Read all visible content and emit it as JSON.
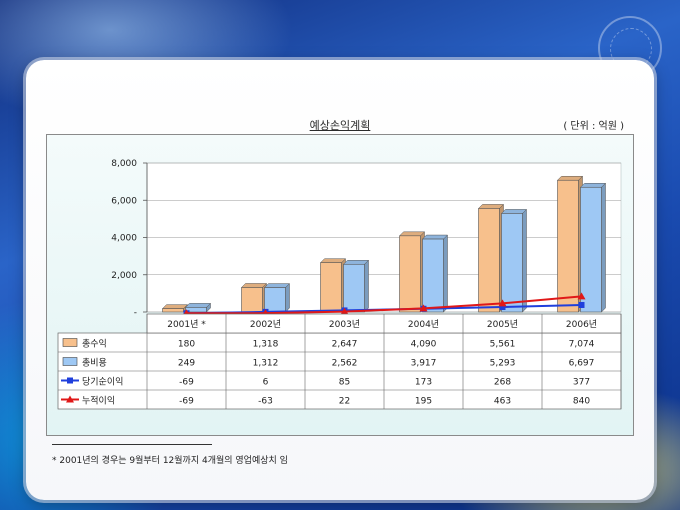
{
  "unit_label": "( 단위 : 억원 )",
  "footnote": "* 2001년의 경우는 9월부터 12월까지 4개월의 영업예상치 임",
  "colors": {
    "bar1": "#f7c08c",
    "bar2": "#9ec8f4",
    "line1": "#1f3fdc",
    "line2": "#e01818"
  },
  "chart_data": {
    "type": "bar",
    "title": "예상손익계획",
    "categories": [
      "2001년 *",
      "2002년",
      "2003년",
      "2004년",
      "2005년",
      "2006년"
    ],
    "ylim": [
      -200,
      8000
    ],
    "yticks": [
      {
        "value": 0,
        "label": "-"
      },
      {
        "value": 2000,
        "label": "2,000"
      },
      {
        "value": 4000,
        "label": "4,000"
      },
      {
        "value": 6000,
        "label": "6,000"
      },
      {
        "value": 8000,
        "label": "8,000"
      }
    ],
    "series": [
      {
        "name": "총수익",
        "kind": "bar",
        "values": [
          180,
          1318,
          2647,
          4090,
          5561,
          7074
        ],
        "labels": [
          "180",
          "1,318",
          "2,647",
          "4,090",
          "5,561",
          "7,074"
        ]
      },
      {
        "name": "총비용",
        "kind": "bar",
        "values": [
          249,
          1312,
          2562,
          3917,
          5293,
          6697
        ],
        "labels": [
          "249",
          "1,312",
          "2,562",
          "3,917",
          "5,293",
          "6,697"
        ]
      },
      {
        "name": "당기순이익",
        "kind": "line",
        "marker": "square",
        "values": [
          -69,
          6,
          85,
          173,
          268,
          377
        ],
        "labels": [
          "-69",
          "6",
          "85",
          "173",
          "268",
          "377"
        ]
      },
      {
        "name": "누적이익",
        "kind": "line",
        "marker": "triangle",
        "values": [
          -69,
          -63,
          22,
          195,
          463,
          840
        ],
        "labels": [
          "-69",
          "-63",
          "22",
          "195",
          "463",
          "840"
        ]
      }
    ]
  }
}
